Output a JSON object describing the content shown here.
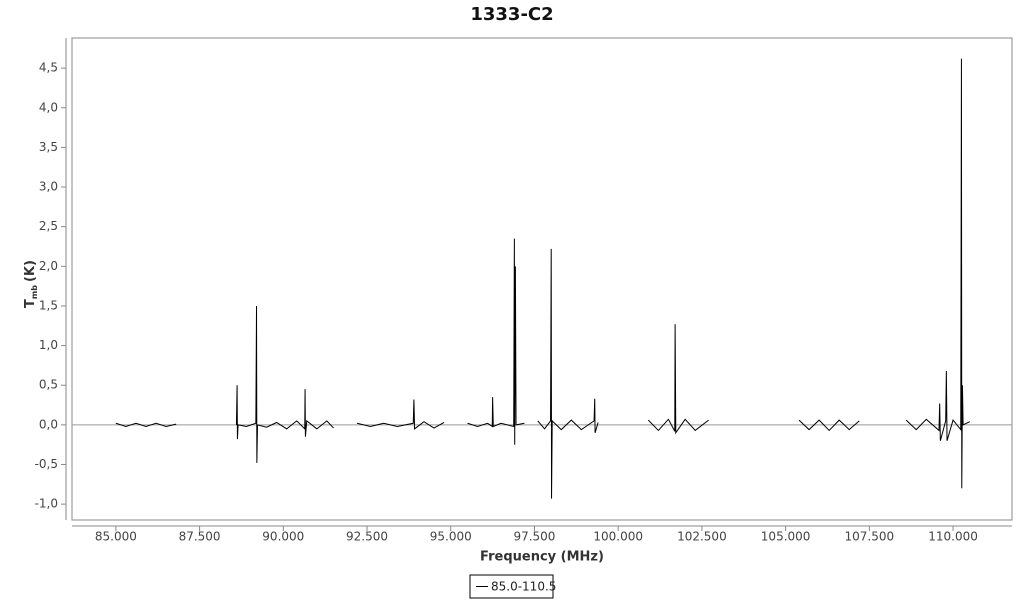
{
  "chart_data": {
    "type": "line",
    "title": "1333-C2",
    "xlabel": "Frequency (MHz)",
    "ylabel": {
      "symbol": "T",
      "subscript": "mb",
      "unit": "(K)"
    },
    "x": [
      85.0,
      85.3,
      85.6,
      85.9,
      86.2,
      86.5,
      86.8,
      87.5,
      88.6,
      88.62,
      88.63,
      88.65,
      88.9,
      89.18,
      89.2,
      89.21,
      89.23,
      89.5,
      89.8,
      90.1,
      90.4,
      90.64,
      90.65,
      90.66,
      90.7,
      91.0,
      91.3,
      91.5,
      91.9,
      92.2,
      92.6,
      93.0,
      93.4,
      93.88,
      93.9,
      93.92,
      94.2,
      94.5,
      94.8,
      95.2,
      95.5,
      95.8,
      96.1,
      96.24,
      96.25,
      96.27,
      96.5,
      96.88,
      96.9,
      96.91,
      96.93,
      96.95,
      97.2,
      97.4,
      97.6,
      97.8,
      97.98,
      98.0,
      98.01,
      98.03,
      98.3,
      98.6,
      98.9,
      99.28,
      99.3,
      99.31,
      99.4,
      100.2,
      100.9,
      101.2,
      101.5,
      101.69,
      101.7,
      101.72,
      102.0,
      102.3,
      102.7,
      104.0,
      105.4,
      105.7,
      106.0,
      106.3,
      106.6,
      106.9,
      107.2,
      108.0,
      108.6,
      108.9,
      109.2,
      109.58,
      109.6,
      109.62,
      109.78,
      109.8,
      109.82,
      110.0,
      110.23,
      110.25,
      110.26,
      110.28,
      110.3,
      110.5
    ],
    "series": [
      {
        "name": "85.0-110.5",
        "color": "#000000",
        "values": [
          0.02,
          -0.02,
          0.02,
          -0.02,
          0.02,
          -0.02,
          0.01,
          null,
          0.0,
          0.5,
          -0.18,
          0.0,
          -0.02,
          0.02,
          1.5,
          -0.48,
          0.0,
          -0.03,
          0.03,
          -0.05,
          0.05,
          -0.05,
          0.45,
          -0.15,
          0.05,
          -0.05,
          0.05,
          -0.04,
          null,
          0.02,
          -0.02,
          0.02,
          -0.02,
          0.02,
          0.32,
          -0.05,
          0.04,
          -0.04,
          0.03,
          null,
          0.02,
          -0.02,
          0.02,
          -0.02,
          0.35,
          -0.02,
          0.02,
          -0.02,
          2.35,
          -0.25,
          2.0,
          0.0,
          0.02,
          null,
          0.05,
          -0.05,
          0.05,
          2.22,
          -0.93,
          0.05,
          -0.06,
          0.06,
          -0.06,
          0.05,
          0.33,
          -0.1,
          0.03,
          null,
          0.06,
          -0.07,
          0.07,
          -0.08,
          1.27,
          -0.1,
          0.07,
          -0.07,
          0.06,
          null,
          0.06,
          -0.06,
          0.06,
          -0.07,
          0.06,
          -0.06,
          0.05,
          null,
          0.06,
          -0.06,
          0.07,
          -0.07,
          0.27,
          -0.2,
          0.05,
          0.68,
          -0.2,
          0.06,
          -0.06,
          4.62,
          -0.8,
          0.5,
          0.0,
          0.04
        ]
      }
    ],
    "xlim": [
      83.69,
      111.76
    ],
    "ylim": [
      -1.2,
      4.88
    ],
    "xticks": [
      {
        "value": 85,
        "label": "85.000"
      },
      {
        "value": 87.5,
        "label": "87.500"
      },
      {
        "value": 90,
        "label": "90.000"
      },
      {
        "value": 92.5,
        "label": "92.500"
      },
      {
        "value": 95,
        "label": "95.000"
      },
      {
        "value": 97.5,
        "label": "97.500"
      },
      {
        "value": 100,
        "label": "100.000"
      },
      {
        "value": 102.5,
        "label": "102.500"
      },
      {
        "value": 105,
        "label": "105.000"
      },
      {
        "value": 107.5,
        "label": "107.500"
      },
      {
        "value": 110,
        "label": "110.000"
      }
    ],
    "yticks": [
      {
        "value": -1,
        "label": "-1,0"
      },
      {
        "value": -0.5,
        "label": "-0,5"
      },
      {
        "value": 0,
        "label": "0,0"
      },
      {
        "value": 0.5,
        "label": "0,5"
      },
      {
        "value": 1,
        "label": "1,0"
      },
      {
        "value": 1.5,
        "label": "1,5"
      },
      {
        "value": 2,
        "label": "2,0"
      },
      {
        "value": 2.5,
        "label": "2,5"
      },
      {
        "value": 3,
        "label": "3,0"
      },
      {
        "value": 3.5,
        "label": "3,5"
      },
      {
        "value": 4,
        "label": "4,0"
      },
      {
        "value": 4.5,
        "label": "4,5"
      }
    ],
    "zero_line": true,
    "legend": "bottom"
  }
}
